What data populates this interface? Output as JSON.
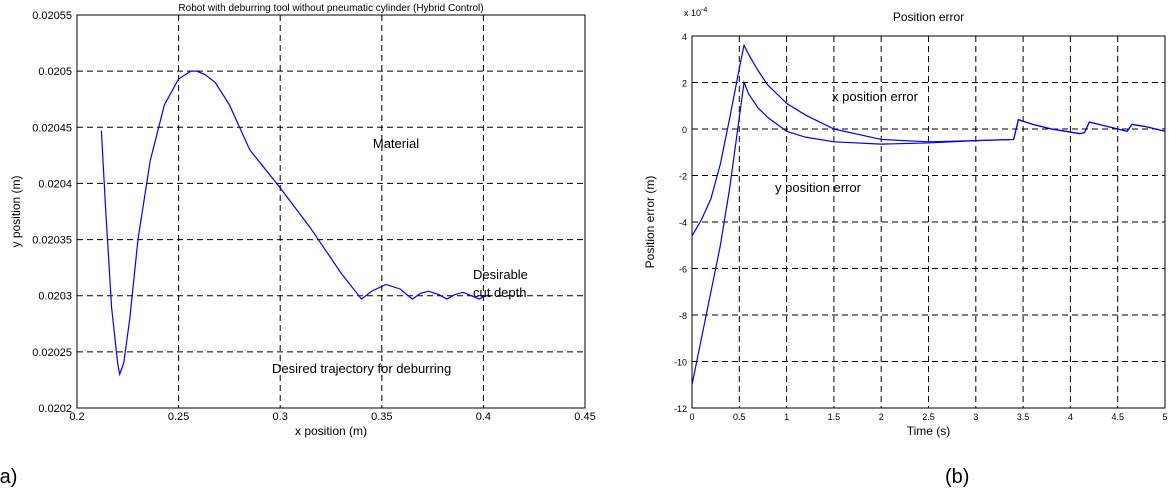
{
  "chart_data": [
    {
      "type": "line",
      "title": "Robot with deburring tool without pneumatic cylinder  (Hybrid Control)",
      "x_label": "x position (m)",
      "y_label": "y position (m)",
      "xlim": [
        0.2,
        0.45
      ],
      "xticks": [
        0.2,
        0.25,
        0.3,
        0.35,
        0.4,
        0.45
      ],
      "ylim": [
        0.0202,
        0.02055
      ],
      "yticks": [
        0.0202,
        0.02025,
        0.0203,
        0.02035,
        0.0204,
        0.02045,
        0.0205,
        0.02055
      ],
      "grid": true,
      "series": [
        {
          "color": "#0000ff",
          "x": [
            0.212,
            0.214,
            0.217,
            0.22,
            0.221,
            0.223,
            0.226,
            0.23,
            0.236,
            0.243,
            0.25,
            0.256,
            0.259,
            0.263,
            0.268,
            0.275,
            0.285,
            0.3,
            0.315,
            0.33,
            0.34,
            0.345,
            0.352,
            0.359,
            0.365,
            0.369,
            0.373,
            0.378,
            0.382,
            0.386,
            0.39,
            0.394,
            0.398,
            0.401,
            0.404
          ],
          "values": [
            0.020447,
            0.02038,
            0.02029,
            0.02024,
            0.02023,
            0.02024,
            0.02028,
            0.02035,
            0.02042,
            0.02047,
            0.020493,
            0.0205,
            0.0205,
            0.020497,
            0.02049,
            0.02047,
            0.02043,
            0.020396,
            0.02036,
            0.02032,
            0.020297,
            0.020304,
            0.02031,
            0.020306,
            0.020297,
            0.020302,
            0.020304,
            0.020301,
            0.020297,
            0.020301,
            0.020303,
            0.0203,
            0.020297,
            0.0203,
            0.0203
          ]
        }
      ],
      "annotations": [
        "Material",
        "Desirable",
        "cut depth",
        "Desired trajectory for deburring"
      ],
      "panel_label": "(a)"
    },
    {
      "type": "line",
      "title": "Position error",
      "x_label": "Time (s)",
      "y_label": "Position error (m)",
      "multiplier": {
        "base": "x 10",
        "exponent": "-4"
      },
      "xlim": [
        0,
        5
      ],
      "xticks": [
        0,
        0.5,
        1,
        1.5,
        2,
        2.5,
        3,
        3.5,
        4,
        4.5,
        5
      ],
      "ylim": [
        -12,
        4
      ],
      "yticks": [
        -12,
        -10,
        -8,
        -6,
        -4,
        -2,
        0,
        2,
        4
      ],
      "grid": true,
      "series": [
        {
          "name": "x position error",
          "color": "#0000ff",
          "x": [
            0,
            0.1,
            0.2,
            0.3,
            0.4,
            0.5,
            0.55,
            0.6,
            0.7,
            0.8,
            1,
            1.2,
            1.5,
            2,
            2.5,
            3,
            3.4,
            3.45,
            3.6,
            3.8,
            4.1,
            4.15,
            4.2,
            4.4,
            4.6,
            4.65,
            4.8,
            5
          ],
          "values": [
            -4.6,
            -3.9,
            -3.0,
            -1.5,
            0.5,
            2.6,
            3.6,
            3.2,
            2.5,
            1.9,
            1.1,
            0.6,
            0.0,
            -0.45,
            -0.55,
            -0.5,
            -0.45,
            0.4,
            0.2,
            0.0,
            -0.2,
            -0.15,
            0.3,
            0.1,
            -0.1,
            0.2,
            0.1,
            -0.1
          ]
        },
        {
          "name": "y position error",
          "color": "#0000ff",
          "x": [
            0,
            0.1,
            0.2,
            0.3,
            0.4,
            0.5,
            0.55,
            0.6,
            0.7,
            0.8,
            1,
            1.2,
            1.5,
            2,
            2.5,
            3,
            3.4,
            3.45,
            3.6,
            3.8,
            4.1,
            4.15,
            4.2,
            4.4,
            4.6,
            4.65,
            4.8,
            5
          ],
          "values": [
            -11,
            -9,
            -7,
            -5,
            -2.5,
            0.5,
            2.0,
            1.5,
            0.9,
            0.5,
            -0.1,
            -0.35,
            -0.55,
            -0.65,
            -0.6,
            -0.5,
            -0.45,
            0.4,
            0.2,
            0.0,
            -0.2,
            -0.15,
            0.3,
            0.1,
            -0.1,
            0.2,
            0.1,
            -0.1
          ]
        }
      ],
      "panel_label": "(b)"
    }
  ]
}
